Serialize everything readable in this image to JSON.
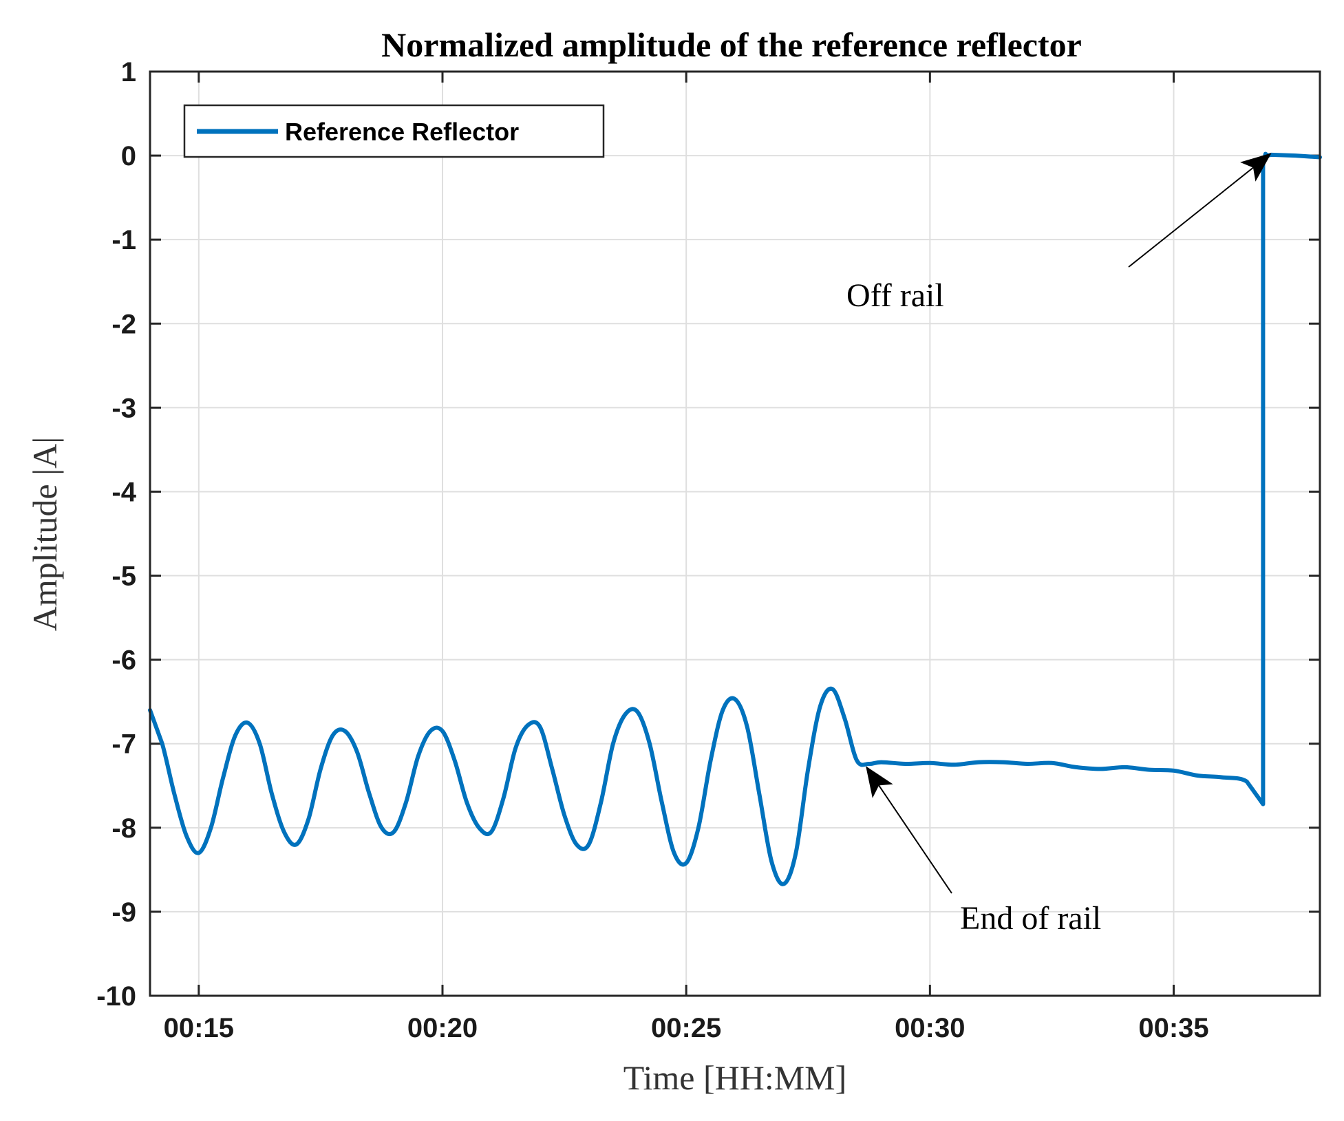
{
  "chart_data": {
    "type": "line",
    "title": "Normalized amplitude of the reference reflector",
    "xlabel": "Time [HH:MM]",
    "ylabel": "Amplitude |A|",
    "xlim": [
      "00:14",
      "00:38"
    ],
    "ylim": [
      -10,
      1
    ],
    "x_ticks": [
      "00:15",
      "00:20",
      "00:25",
      "00:30",
      "00:35"
    ],
    "y_ticks": [
      "1",
      "0",
      "-1",
      "-2",
      "-3",
      "-4",
      "-5",
      "-6",
      "-7",
      "-8",
      "-9",
      "-10"
    ],
    "grid": true,
    "legend_position": "top-left",
    "series": [
      {
        "name": "Reference Reflector",
        "color": "#0072BD",
        "x": [
          "00:14:00",
          "00:14:15",
          "00:14:30",
          "00:14:45",
          "00:15:00",
          "00:15:15",
          "00:15:30",
          "00:15:45",
          "00:16:00",
          "00:16:15",
          "00:16:30",
          "00:16:45",
          "00:17:00",
          "00:17:15",
          "00:17:30",
          "00:17:45",
          "00:18:00",
          "00:18:15",
          "00:18:30",
          "00:18:45",
          "00:19:00",
          "00:19:15",
          "00:19:30",
          "00:19:45",
          "00:20:00",
          "00:20:15",
          "00:20:30",
          "00:20:45",
          "00:21:00",
          "00:21:15",
          "00:21:30",
          "00:21:45",
          "00:22:00",
          "00:22:15",
          "00:22:30",
          "00:22:45",
          "00:23:00",
          "00:23:15",
          "00:23:30",
          "00:23:45",
          "00:24:00",
          "00:24:15",
          "00:24:30",
          "00:24:45",
          "00:25:00",
          "00:25:15",
          "00:25:30",
          "00:25:45",
          "00:26:00",
          "00:26:15",
          "00:26:30",
          "00:26:45",
          "00:27:00",
          "00:27:15",
          "00:27:30",
          "00:27:45",
          "00:28:00",
          "00:28:15",
          "00:28:30",
          "00:28:45",
          "00:29:00",
          "00:29:30",
          "00:30:00",
          "00:30:30",
          "00:31:00",
          "00:31:30",
          "00:32:00",
          "00:32:30",
          "00:33:00",
          "00:33:30",
          "00:34:00",
          "00:34:30",
          "00:35:00",
          "00:35:30",
          "00:36:00",
          "00:36:30",
          "00:36:50",
          "00:36:50",
          "00:36:53",
          "00:36:56",
          "00:37:00",
          "00:37:30",
          "00:38:00"
        ],
        "y": [
          -6.6,
          -7.0,
          -7.6,
          -8.1,
          -8.3,
          -8.0,
          -7.4,
          -6.9,
          -6.75,
          -7.0,
          -7.6,
          -8.05,
          -8.2,
          -7.9,
          -7.3,
          -6.9,
          -6.85,
          -7.1,
          -7.6,
          -8.0,
          -8.05,
          -7.7,
          -7.15,
          -6.85,
          -6.85,
          -7.2,
          -7.7,
          -8.0,
          -8.05,
          -7.65,
          -7.05,
          -6.78,
          -6.8,
          -7.3,
          -7.85,
          -8.2,
          -8.2,
          -7.7,
          -7.0,
          -6.65,
          -6.62,
          -7.0,
          -7.7,
          -8.3,
          -8.42,
          -8.0,
          -7.2,
          -6.6,
          -6.47,
          -6.8,
          -7.6,
          -8.4,
          -8.67,
          -8.3,
          -7.3,
          -6.55,
          -6.35,
          -6.7,
          -7.2,
          -7.24,
          -7.22,
          -7.24,
          -7.23,
          -7.25,
          -7.22,
          -7.22,
          -7.24,
          -7.23,
          -7.28,
          -7.3,
          -7.28,
          -7.31,
          -7.32,
          -7.38,
          -7.4,
          -7.45,
          -7.72,
          -0.1,
          0.02,
          0.0,
          0.01,
          0.0,
          -0.02
        ]
      }
    ],
    "annotations": [
      {
        "text": "Off rail",
        "x": "00:36:59",
        "y": 0.02
      },
      {
        "text": "End of rail",
        "x": "00:28:42",
        "y": -7.28
      }
    ]
  }
}
